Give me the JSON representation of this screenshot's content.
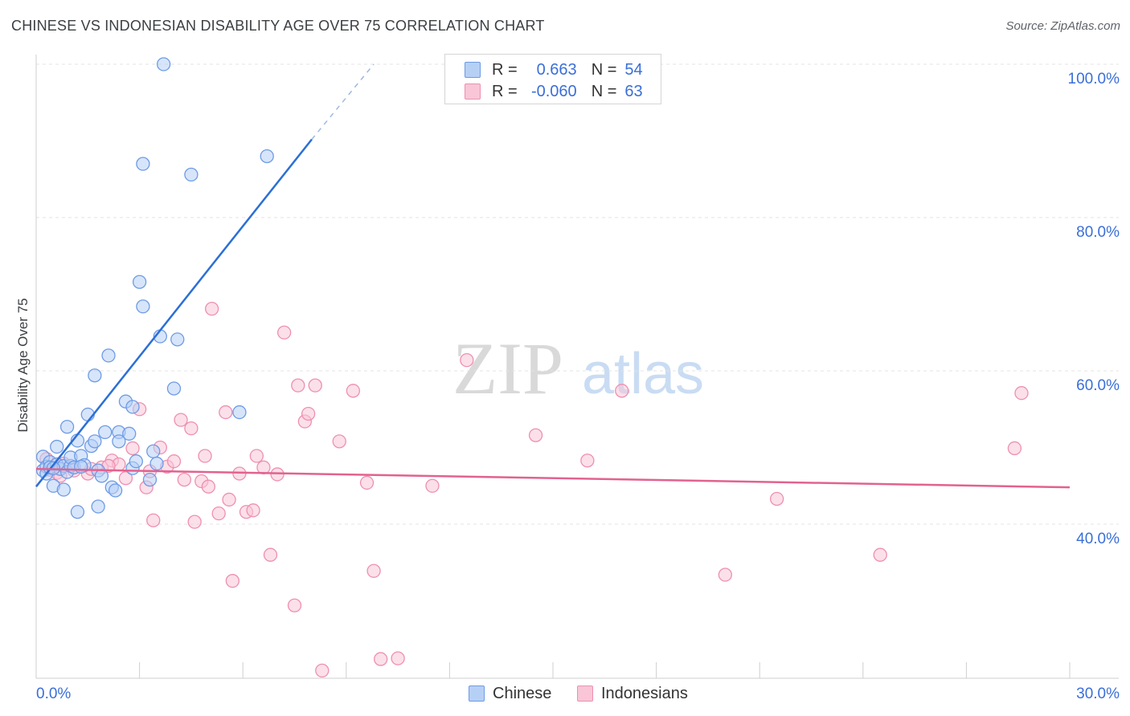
{
  "title": "CHINESE VS INDONESIAN DISABILITY AGE OVER 75 CORRELATION CHART",
  "source": "Source: ZipAtlas.com",
  "watermark": {
    "zip": "ZIP",
    "atlas": "atlas"
  },
  "legend": {
    "r_label": "R =",
    "n_label": "N =",
    "rows": [
      {
        "r": "0.663",
        "n": "54"
      },
      {
        "r": "-0.060",
        "n": "63"
      }
    ]
  },
  "colors": {
    "chinese": "#6d9be6",
    "chinese_fill": "#b6d0f5",
    "chinese_line": "#2b6fd6",
    "indonesian": "#ef8fb1",
    "indonesian_fill": "#f8c6d7",
    "indonesian_line": "#e2628f",
    "axis_text": "#3a6fd8"
  },
  "chart_data": {
    "type": "scatter",
    "title": "CHINESE VS INDONESIAN DISABILITY AGE OVER 75 CORRELATION CHART",
    "xlabel": "",
    "ylabel": "Disability Age Over 75",
    "xlim": [
      0,
      30
    ],
    "ylim": [
      20,
      102
    ],
    "x_tick_labels": [
      "0.0%",
      "30.0%"
    ],
    "y_ticks": [
      40,
      60,
      80,
      100
    ],
    "y_tick_labels": [
      "40.0%",
      "60.0%",
      "80.0%",
      "100.0%"
    ],
    "grid": true,
    "legend_position": "bottom-center",
    "series": [
      {
        "name": "Chinese",
        "r": 0.663,
        "n": 54,
        "trend": {
          "x": [
            0,
            8
          ],
          "y": [
            44.9,
            90.2
          ],
          "dashed_to": [
            9.8,
            100
          ]
        },
        "points": [
          [
            0.2,
            48.8
          ],
          [
            0.2,
            47.0
          ],
          [
            0.3,
            47.5
          ],
          [
            0.3,
            46.6
          ],
          [
            0.4,
            48.1
          ],
          [
            0.4,
            47.4
          ],
          [
            0.5,
            45.0
          ],
          [
            0.6,
            47.8
          ],
          [
            0.6,
            50.1
          ],
          [
            0.7,
            47.2
          ],
          [
            0.8,
            47.6
          ],
          [
            0.8,
            44.5
          ],
          [
            0.9,
            52.7
          ],
          [
            0.9,
            46.8
          ],
          [
            1.0,
            47.6
          ],
          [
            1.0,
            48.7
          ],
          [
            1.1,
            47.4
          ],
          [
            1.2,
            50.9
          ],
          [
            1.2,
            41.6
          ],
          [
            1.3,
            48.9
          ],
          [
            1.4,
            47.7
          ],
          [
            1.5,
            54.3
          ],
          [
            1.6,
            50.2
          ],
          [
            1.7,
            50.8
          ],
          [
            1.7,
            59.4
          ],
          [
            1.8,
            42.3
          ],
          [
            1.8,
            47.0
          ],
          [
            1.9,
            46.3
          ],
          [
            2.0,
            52.0
          ],
          [
            2.1,
            62.0
          ],
          [
            2.2,
            44.8
          ],
          [
            2.3,
            44.4
          ],
          [
            2.4,
            52.0
          ],
          [
            2.4,
            50.8
          ],
          [
            2.6,
            56.0
          ],
          [
            2.7,
            51.8
          ],
          [
            2.8,
            55.3
          ],
          [
            2.8,
            47.3
          ],
          [
            2.9,
            48.2
          ],
          [
            3.0,
            71.6
          ],
          [
            3.1,
            87.0
          ],
          [
            3.1,
            68.4
          ],
          [
            3.3,
            45.8
          ],
          [
            3.4,
            49.5
          ],
          [
            3.5,
            47.9
          ],
          [
            3.6,
            64.5
          ],
          [
            3.7,
            100.0
          ],
          [
            4.0,
            57.7
          ],
          [
            4.1,
            64.1
          ],
          [
            4.5,
            85.6
          ],
          [
            5.9,
            54.6
          ],
          [
            6.7,
            88.0
          ],
          [
            0.5,
            47.3
          ],
          [
            1.3,
            47.5
          ]
        ]
      },
      {
        "name": "Indonesians",
        "r": -0.06,
        "n": 63,
        "trend": {
          "x": [
            0,
            30
          ],
          "y": [
            47.2,
            44.8
          ]
        },
        "points": [
          [
            0.4,
            47.1
          ],
          [
            0.6,
            46.7
          ],
          [
            0.8,
            47.9
          ],
          [
            1.1,
            47.0
          ],
          [
            1.5,
            46.6
          ],
          [
            1.9,
            47.4
          ],
          [
            2.2,
            48.3
          ],
          [
            2.4,
            47.8
          ],
          [
            2.6,
            46.0
          ],
          [
            2.8,
            49.9
          ],
          [
            3.0,
            55.0
          ],
          [
            3.2,
            44.8
          ],
          [
            3.4,
            40.5
          ],
          [
            3.6,
            50.0
          ],
          [
            3.8,
            47.5
          ],
          [
            4.0,
            48.2
          ],
          [
            4.2,
            53.6
          ],
          [
            4.3,
            45.8
          ],
          [
            4.5,
            52.5
          ],
          [
            4.6,
            40.3
          ],
          [
            4.8,
            45.6
          ],
          [
            4.9,
            48.9
          ],
          [
            5.1,
            68.1
          ],
          [
            5.3,
            41.4
          ],
          [
            5.5,
            54.6
          ],
          [
            5.6,
            43.2
          ],
          [
            5.7,
            32.6
          ],
          [
            5.9,
            46.6
          ],
          [
            6.1,
            41.6
          ],
          [
            6.3,
            41.8
          ],
          [
            6.4,
            48.9
          ],
          [
            6.6,
            47.4
          ],
          [
            6.8,
            36.0
          ],
          [
            7.0,
            46.5
          ],
          [
            7.2,
            65.0
          ],
          [
            7.5,
            29.4
          ],
          [
            7.6,
            58.1
          ],
          [
            7.8,
            53.4
          ],
          [
            7.9,
            54.4
          ],
          [
            8.1,
            58.1
          ],
          [
            8.3,
            20.9
          ],
          [
            8.8,
            50.8
          ],
          [
            9.2,
            57.4
          ],
          [
            9.6,
            45.4
          ],
          [
            9.8,
            33.9
          ],
          [
            10.0,
            22.4
          ],
          [
            10.5,
            22.5
          ],
          [
            11.5,
            45.0
          ],
          [
            12.5,
            61.4
          ],
          [
            14.5,
            51.6
          ],
          [
            16.0,
            48.3
          ],
          [
            17.0,
            57.4
          ],
          [
            20.0,
            33.4
          ],
          [
            21.5,
            43.3
          ],
          [
            24.5,
            36.0
          ],
          [
            28.4,
            49.9
          ],
          [
            28.6,
            57.1
          ],
          [
            0.3,
            48.5
          ],
          [
            0.7,
            46.3
          ],
          [
            1.6,
            47.2
          ],
          [
            2.1,
            47.6
          ],
          [
            3.3,
            46.9
          ],
          [
            5.0,
            44.9
          ]
        ]
      }
    ]
  }
}
